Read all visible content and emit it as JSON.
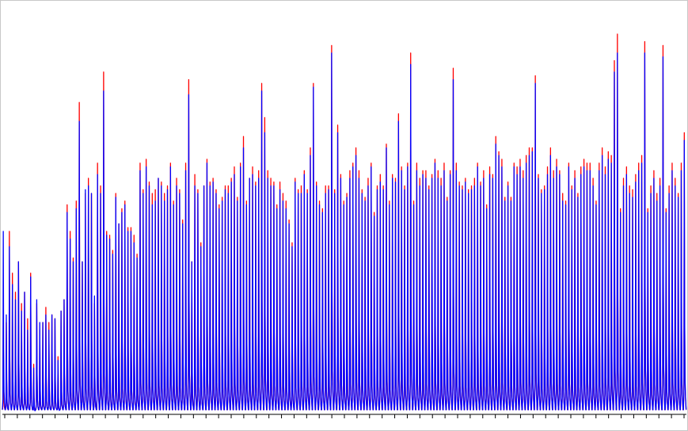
{
  "chart_data": {
    "type": "line",
    "title": "",
    "xlabel": "",
    "ylabel": "",
    "grid": false,
    "legend": "none",
    "xlim": [
      0,
      216
    ],
    "ylim": [
      0,
      1.0
    ],
    "x_tick_count": 55,
    "series": [
      {
        "color": "#ff0000",
        "peak_values": [
          0.25,
          0.24,
          0.48,
          0.37,
          0.32,
          0.4,
          0.29,
          0.32,
          0.25,
          0.37,
          0.13,
          0.29,
          0.22,
          0.24,
          0.28,
          0.24,
          0.26,
          0.25,
          0.15,
          0.27,
          0.3,
          0.55,
          0.48,
          0.41,
          0.56,
          0.82,
          0.4,
          0.58,
          0.62,
          0.58,
          0.29,
          0.66,
          0.6,
          0.9,
          0.48,
          0.47,
          0.43,
          0.58,
          0.5,
          0.54,
          0.56,
          0.49,
          0.49,
          0.47,
          0.42,
          0.66,
          0.59,
          0.67,
          0.61,
          0.58,
          0.59,
          0.62,
          0.61,
          0.58,
          0.6,
          0.66,
          0.56,
          0.62,
          0.59,
          0.51,
          0.66,
          0.88,
          0.4,
          0.63,
          0.59,
          0.45,
          0.6,
          0.67,
          0.61,
          0.62,
          0.59,
          0.55,
          0.57,
          0.6,
          0.6,
          0.62,
          0.65,
          0.57,
          0.66,
          0.73,
          0.56,
          0.62,
          0.65,
          0.61,
          0.64,
          0.87,
          0.78,
          0.64,
          0.62,
          0.61,
          0.55,
          0.61,
          0.58,
          0.56,
          0.51,
          0.45,
          0.62,
          0.59,
          0.6,
          0.64,
          0.59,
          0.7,
          0.87,
          0.61,
          0.56,
          0.54,
          0.6,
          0.6,
          0.97,
          0.59,
          0.76,
          0.63,
          0.56,
          0.58,
          0.64,
          0.66,
          0.7,
          0.64,
          0.59,
          0.57,
          0.62,
          0.66,
          0.53,
          0.6,
          0.63,
          0.6,
          0.71,
          0.56,
          0.63,
          0.62,
          0.79,
          0.65,
          0.6,
          0.66,
          0.95,
          0.56,
          0.66,
          0.62,
          0.64,
          0.64,
          0.6,
          0.63,
          0.67,
          0.64,
          0.62,
          0.66,
          0.57,
          0.64,
          0.91,
          0.66,
          0.61,
          0.6,
          0.62,
          0.59,
          0.6,
          0.62,
          0.66,
          0.61,
          0.64,
          0.55,
          0.65,
          0.63,
          0.73,
          0.69,
          0.67,
          0.57,
          0.61,
          0.57,
          0.66,
          0.65,
          0.67,
          0.64,
          0.68,
          0.7,
          0.7,
          0.89,
          0.63,
          0.59,
          0.6,
          0.65,
          0.7,
          0.64,
          0.67,
          0.64,
          0.58,
          0.56,
          0.66,
          0.6,
          0.64,
          0.58,
          0.65,
          0.67,
          0.66,
          0.66,
          0.62,
          0.56,
          0.66,
          0.7,
          0.65,
          0.69,
          0.68,
          0.93,
          1.0,
          0.54,
          0.62,
          0.65,
          0.6,
          0.59,
          0.63,
          0.66,
          0.68,
          0.98,
          0.54,
          0.6,
          0.64,
          0.58,
          0.62,
          0.97,
          0.54,
          0.6,
          0.66,
          0.62,
          0.58,
          0.66,
          0.74
        ]
      },
      {
        "color": "#0000ff",
        "peak_values": [
          0.48,
          0.26,
          0.44,
          0.34,
          0.3,
          0.4,
          0.27,
          0.32,
          0.22,
          0.36,
          0.12,
          0.3,
          0.24,
          0.24,
          0.26,
          0.22,
          0.26,
          0.25,
          0.14,
          0.27,
          0.3,
          0.53,
          0.46,
          0.4,
          0.54,
          0.77,
          0.4,
          0.59,
          0.6,
          0.58,
          0.31,
          0.63,
          0.58,
          0.85,
          0.47,
          0.46,
          0.42,
          0.57,
          0.5,
          0.53,
          0.55,
          0.48,
          0.48,
          0.45,
          0.41,
          0.64,
          0.58,
          0.65,
          0.6,
          0.55,
          0.56,
          0.62,
          0.6,
          0.56,
          0.59,
          0.65,
          0.55,
          0.6,
          0.58,
          0.5,
          0.64,
          0.84,
          0.4,
          0.6,
          0.58,
          0.44,
          0.6,
          0.66,
          0.6,
          0.61,
          0.58,
          0.54,
          0.56,
          0.59,
          0.58,
          0.61,
          0.63,
          0.56,
          0.65,
          0.7,
          0.55,
          0.62,
          0.63,
          0.6,
          0.62,
          0.85,
          0.74,
          0.62,
          0.6,
          0.6,
          0.54,
          0.59,
          0.56,
          0.54,
          0.5,
          0.44,
          0.61,
          0.58,
          0.58,
          0.63,
          0.58,
          0.68,
          0.86,
          0.6,
          0.55,
          0.53,
          0.58,
          0.59,
          0.95,
          0.58,
          0.74,
          0.62,
          0.55,
          0.57,
          0.62,
          0.65,
          0.68,
          0.62,
          0.58,
          0.56,
          0.6,
          0.65,
          0.52,
          0.59,
          0.61,
          0.59,
          0.7,
          0.55,
          0.62,
          0.61,
          0.77,
          0.64,
          0.59,
          0.65,
          0.92,
          0.55,
          0.64,
          0.6,
          0.63,
          0.62,
          0.59,
          0.62,
          0.66,
          0.62,
          0.6,
          0.64,
          0.56,
          0.63,
          0.88,
          0.64,
          0.6,
          0.59,
          0.61,
          0.58,
          0.59,
          0.6,
          0.65,
          0.6,
          0.62,
          0.54,
          0.63,
          0.62,
          0.71,
          0.68,
          0.65,
          0.56,
          0.6,
          0.56,
          0.65,
          0.63,
          0.65,
          0.62,
          0.66,
          0.68,
          0.69,
          0.87,
          0.62,
          0.58,
          0.59,
          0.63,
          0.68,
          0.62,
          0.65,
          0.63,
          0.56,
          0.55,
          0.65,
          0.59,
          0.62,
          0.57,
          0.63,
          0.65,
          0.64,
          0.64,
          0.6,
          0.55,
          0.64,
          0.68,
          0.63,
          0.67,
          0.66,
          0.9,
          0.95,
          0.53,
          0.6,
          0.63,
          0.58,
          0.57,
          0.61,
          0.64,
          0.66,
          0.95,
          0.53,
          0.58,
          0.62,
          0.56,
          0.6,
          0.94,
          0.53,
          0.58,
          0.64,
          0.6,
          0.57,
          0.64,
          0.72
        ]
      }
    ]
  }
}
